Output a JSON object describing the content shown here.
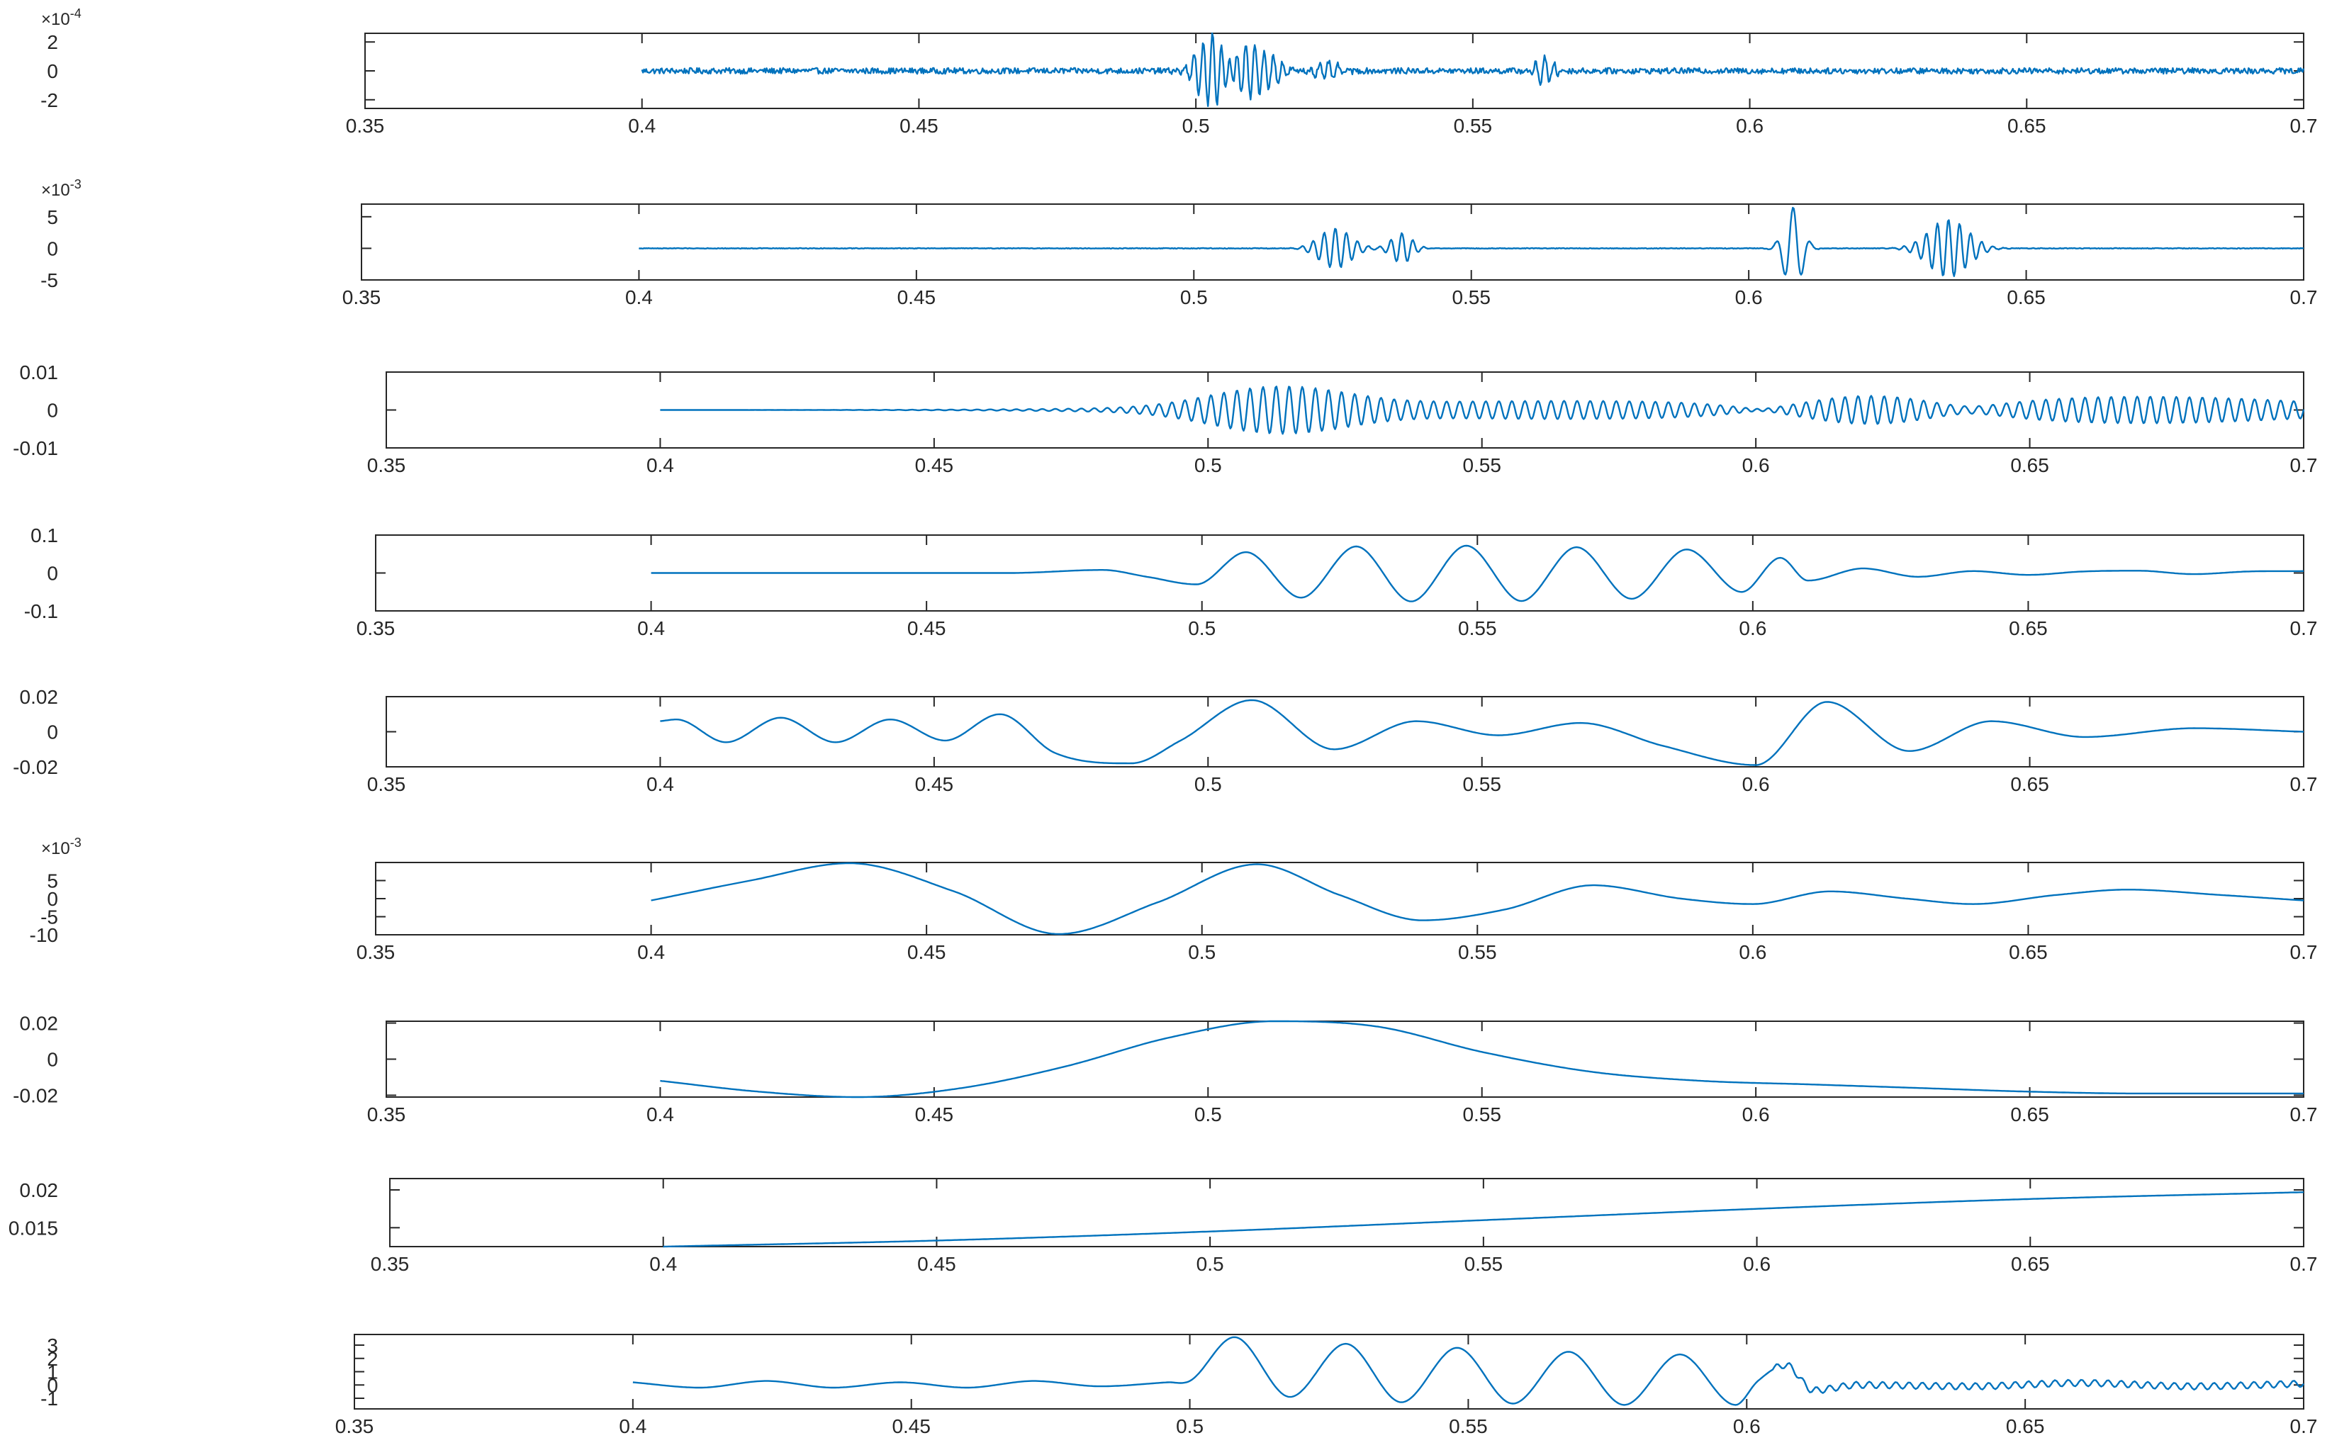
{
  "colors": {
    "line": "#0072BD",
    "axes": "#262626",
    "background": "#ffffff"
  },
  "chart_data": [
    {
      "type": "line",
      "panel": 1,
      "title": "",
      "xlabel": "",
      "ylabel": "",
      "xlim": [
        0.35,
        0.7
      ],
      "ylim": [
        -2.6,
        2.6
      ],
      "y_exponent": "-4",
      "xticks": [
        "0.35",
        "0.4",
        "0.45",
        "0.5",
        "0.55",
        "0.6",
        "0.65",
        "0.7"
      ],
      "yticks": [
        {
          "v": -2,
          "label": "-2"
        },
        {
          "v": 0,
          "label": "0"
        },
        {
          "v": 2,
          "label": "2"
        }
      ],
      "x_start": 0.4,
      "x_end": 0.7,
      "baseline": 0,
      "noise": 0.4,
      "bursts": [
        {
          "t": 0.503,
          "w": 0.0025,
          "amp": 2.6,
          "freq": 600
        },
        {
          "t": 0.509,
          "w": 0.0025,
          "amp": 1.9,
          "freq": 600
        },
        {
          "t": 0.514,
          "w": 0.002,
          "amp": 0.8,
          "freq": 600
        },
        {
          "t": 0.524,
          "w": 0.002,
          "amp": 0.7,
          "freq": 600
        },
        {
          "t": 0.563,
          "w": 0.0015,
          "amp": 1.0,
          "freq": 600
        }
      ]
    },
    {
      "type": "line",
      "panel": 2,
      "title": "",
      "xlabel": "",
      "ylabel": "",
      "xlim": [
        0.35,
        0.7
      ],
      "ylim": [
        -5,
        7
      ],
      "y_exponent": "-3",
      "xticks": [
        "0.35",
        "0.4",
        "0.45",
        "0.5",
        "0.55",
        "0.6",
        "0.65",
        "0.7"
      ],
      "yticks": [
        {
          "v": -5,
          "label": "-5"
        },
        {
          "v": 0,
          "label": "0"
        },
        {
          "v": 5,
          "label": "5"
        }
      ],
      "x_start": 0.4,
      "x_end": 0.7,
      "baseline": 0,
      "noise": 0.1,
      "bursts": [
        {
          "t": 0.5255,
          "w": 0.0028,
          "amp": 3.2,
          "freq": 500
        },
        {
          "t": 0.5375,
          "w": 0.0018,
          "amp": 2.4,
          "freq": 500
        },
        {
          "t": 0.608,
          "w": 0.0016,
          "amp": 6.5,
          "freq": 320
        },
        {
          "t": 0.636,
          "w": 0.0035,
          "amp": 4.6,
          "freq": 500
        }
      ]
    },
    {
      "type": "line",
      "panel": 3,
      "title": "",
      "xlabel": "",
      "ylabel": "",
      "xlim": [
        0.35,
        0.7
      ],
      "ylim": [
        -0.01,
        0.01
      ],
      "xticks": [
        "0.35",
        "0.4",
        "0.45",
        "0.5",
        "0.55",
        "0.6",
        "0.65",
        "0.7"
      ],
      "yticks": [
        {
          "v": -0.01,
          "label": "-0.01"
        },
        {
          "v": 0,
          "label": "0"
        },
        {
          "v": 0.01,
          "label": "0.01"
        }
      ],
      "x_start": 0.4,
      "x_end": 0.7,
      "baseline": 0,
      "noise": 0,
      "bursts": [
        {
          "t": 0.51,
          "w": 0.011,
          "amp": 0.0045,
          "freq": 420
        },
        {
          "t": 0.522,
          "w": 0.009,
          "amp": 0.0015,
          "freq": 420
        },
        {
          "t": 0.565,
          "w": 0.045,
          "amp": 0.0024,
          "freq": 420
        },
        {
          "t": 0.621,
          "w": 0.014,
          "amp": 0.0055,
          "freq": 420
        },
        {
          "t": 0.672,
          "w": 0.03,
          "amp": 0.0034,
          "freq": 420
        }
      ]
    },
    {
      "type": "line",
      "panel": 4,
      "title": "",
      "xlabel": "",
      "ylabel": "",
      "xlim": [
        0.35,
        0.7
      ],
      "ylim": [
        -0.1,
        0.1
      ],
      "xticks": [
        "0.35",
        "0.4",
        "0.45",
        "0.5",
        "0.55",
        "0.6",
        "0.65",
        "0.7"
      ],
      "yticks": [
        {
          "v": -0.1,
          "label": "-0.1"
        },
        {
          "v": 0,
          "label": "0"
        },
        {
          "v": 0.1,
          "label": "0.1"
        }
      ],
      "x": [
        0.4,
        0.45,
        0.465,
        0.482,
        0.49,
        0.499,
        0.508,
        0.518,
        0.528,
        0.538,
        0.548,
        0.558,
        0.568,
        0.578,
        0.588,
        0.598,
        0.605,
        0.61,
        0.62,
        0.63,
        0.64,
        0.65,
        0.66,
        0.67,
        0.68,
        0.69,
        0.7
      ],
      "y": [
        0,
        0,
        0,
        0.008,
        -0.01,
        -0.03,
        0.055,
        -0.065,
        0.07,
        -0.075,
        0.072,
        -0.074,
        0.068,
        -0.068,
        0.062,
        -0.05,
        0.04,
        -0.02,
        0.012,
        -0.01,
        0.005,
        -0.005,
        0.004,
        0.006,
        -0.003,
        0.004,
        0.005
      ]
    },
    {
      "type": "line",
      "panel": 5,
      "title": "",
      "xlabel": "",
      "ylabel": "",
      "xlim": [
        0.35,
        0.7
      ],
      "ylim": [
        -0.02,
        0.02
      ],
      "xticks": [
        "0.35",
        "0.4",
        "0.45",
        "0.5",
        "0.55",
        "0.6",
        "0.65",
        "0.7"
      ],
      "yticks": [
        {
          "v": -0.02,
          "label": "-0.02"
        },
        {
          "v": 0,
          "label": "0"
        },
        {
          "v": 0.02,
          "label": "0.02"
        }
      ],
      "x": [
        0.4,
        0.403,
        0.412,
        0.422,
        0.432,
        0.442,
        0.452,
        0.462,
        0.472,
        0.486,
        0.495,
        0.508,
        0.523,
        0.538,
        0.553,
        0.568,
        0.583,
        0.6,
        0.613,
        0.628,
        0.643,
        0.66,
        0.68,
        0.7
      ],
      "y": [
        0.006,
        0.007,
        -0.006,
        0.008,
        -0.006,
        0.007,
        -0.005,
        0.01,
        -0.012,
        -0.018,
        -0.005,
        0.018,
        -0.01,
        0.006,
        -0.002,
        0.005,
        -0.008,
        -0.019,
        0.017,
        -0.011,
        0.006,
        -0.003,
        0.002,
        0
      ]
    },
    {
      "type": "line",
      "panel": 6,
      "title": "",
      "xlabel": "",
      "ylabel": "",
      "xlim": [
        0.35,
        0.7
      ],
      "ylim": [
        -10,
        10
      ],
      "y_exponent": "-3",
      "xticks": [
        "0.35",
        "0.4",
        "0.45",
        "0.5",
        "0.55",
        "0.6",
        "0.65",
        "0.7"
      ],
      "yticks": [
        {
          "v": -10,
          "label": "-10"
        },
        {
          "v": -5,
          "label": "-5"
        },
        {
          "v": 0,
          "label": "0"
        },
        {
          "v": 5,
          "label": "5"
        }
      ],
      "x": [
        0.4,
        0.418,
        0.436,
        0.455,
        0.474,
        0.492,
        0.51,
        0.525,
        0.54,
        0.555,
        0.571,
        0.587,
        0.6,
        0.614,
        0.628,
        0.64,
        0.655,
        0.668,
        0.685,
        0.7
      ],
      "y": [
        -0.5,
        5,
        9.8,
        2,
        -9.8,
        -1,
        9.5,
        1,
        -6,
        -3,
        3.7,
        0,
        -1.5,
        2,
        0,
        -1.5,
        1,
        2.5,
        1,
        -0.5
      ]
    },
    {
      "type": "line",
      "panel": 7,
      "title": "",
      "xlabel": "",
      "ylabel": "",
      "xlim": [
        0.35,
        0.7
      ],
      "ylim": [
        -0.021,
        0.021
      ],
      "xticks": [
        "0.35",
        "0.4",
        "0.45",
        "0.5",
        "0.55",
        "0.6",
        "0.65",
        "0.7"
      ],
      "yticks": [
        {
          "v": -0.02,
          "label": "-0.02"
        },
        {
          "v": 0,
          "label": "0"
        },
        {
          "v": 0.02,
          "label": "0.02"
        }
      ],
      "x": [
        0.4,
        0.418,
        0.436,
        0.455,
        0.474,
        0.493,
        0.512,
        0.531,
        0.55,
        0.57,
        0.59,
        0.61,
        0.63,
        0.65,
        0.67,
        0.7
      ],
      "y": [
        -0.012,
        -0.018,
        -0.021,
        -0.016,
        -0.004,
        0.012,
        0.021,
        0.018,
        0.004,
        -0.007,
        -0.012,
        -0.014,
        -0.016,
        -0.018,
        -0.019,
        -0.019
      ]
    },
    {
      "type": "line",
      "panel": 8,
      "title": "",
      "xlabel": "",
      "ylabel": "",
      "xlim": [
        0.35,
        0.7
      ],
      "ylim": [
        0.0125,
        0.0215
      ],
      "xticks": [
        "0.35",
        "0.4",
        "0.45",
        "0.5",
        "0.55",
        "0.6",
        "0.65",
        "0.7"
      ],
      "yticks": [
        {
          "v": 0.015,
          "label": "0.015"
        },
        {
          "v": 0.02,
          "label": "0.02"
        }
      ],
      "x": [
        0.4,
        0.45,
        0.5,
        0.55,
        0.6,
        0.65,
        0.7
      ],
      "y": [
        0.0125,
        0.0133,
        0.0145,
        0.016,
        0.0175,
        0.0188,
        0.0197
      ]
    },
    {
      "type": "line",
      "panel": 9,
      "title": "",
      "xlabel": "",
      "ylabel": "",
      "xlim": [
        0.35,
        0.7
      ],
      "ylim": [
        -1.8,
        3.8
      ],
      "xticks": [
        "0.35",
        "0.4",
        "0.45",
        "0.5",
        "0.55",
        "0.6",
        "0.65",
        "0.7"
      ],
      "yticks": [
        {
          "v": -1,
          "label": "-1"
        },
        {
          "v": 0,
          "label": "0"
        },
        {
          "v": 1,
          "label": "1"
        },
        {
          "v": 2,
          "label": "2"
        },
        {
          "v": 3,
          "label": "3"
        }
      ],
      "x": [
        0.4,
        0.412,
        0.424,
        0.436,
        0.448,
        0.46,
        0.472,
        0.484,
        0.496,
        0.5,
        0.508,
        0.518,
        0.528,
        0.538,
        0.548,
        0.558,
        0.568,
        0.578,
        0.588,
        0.598,
        0.602,
        0.607,
        0.612,
        0.62,
        0.64,
        0.66,
        0.68,
        0.7
      ],
      "y": [
        0.2,
        -0.2,
        0.3,
        -0.2,
        0.2,
        -0.2,
        0.3,
        -0.1,
        0.2,
        0.3,
        3.6,
        -0.9,
        3.1,
        -1.3,
        2.8,
        -1.4,
        2.5,
        -1.5,
        2.3,
        -1.5,
        0.3,
        1.5,
        -0.4,
        0,
        -0.1,
        0.15,
        -0.1,
        0.1
      ],
      "ripple": {
        "x_from": 0.605,
        "amp": 0.25,
        "freq": 420
      }
    }
  ]
}
